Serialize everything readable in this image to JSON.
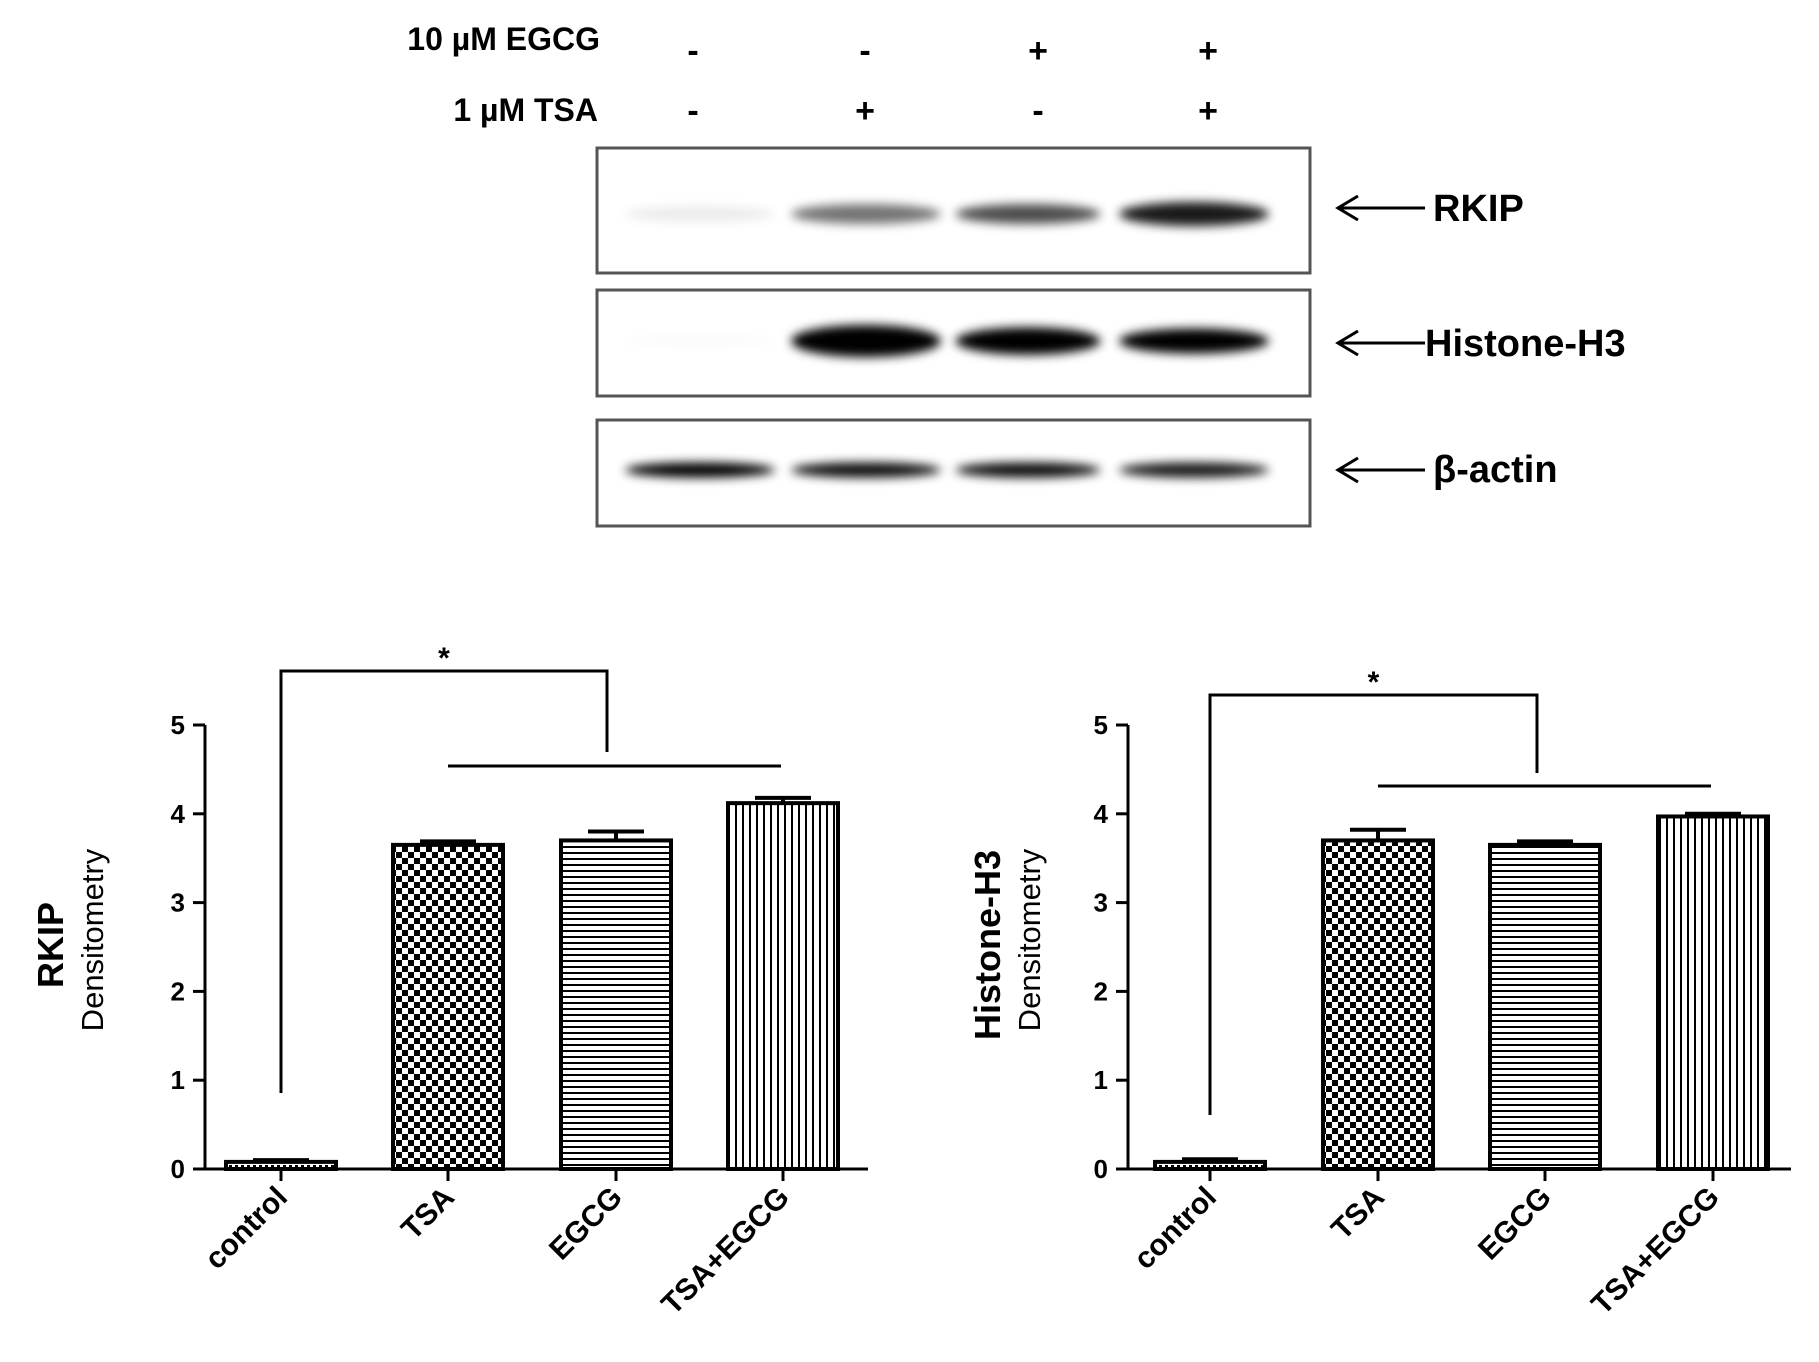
{
  "blot": {
    "treatments": [
      {
        "label": "10 µM EGCG",
        "signs": [
          "-",
          "-",
          "+",
          "+"
        ]
      },
      {
        "label": "1 µM TSA",
        "signs": [
          "-",
          "+",
          "-",
          "+"
        ]
      }
    ],
    "bands": [
      {
        "label": "RKIP",
        "intensity": [
          0.08,
          0.55,
          0.7,
          0.9
        ],
        "thickness": [
          0.35,
          0.45,
          0.45,
          0.55
        ]
      },
      {
        "label": "Histone-H3",
        "intensity": [
          0.02,
          1.0,
          1.0,
          1.0
        ],
        "thickness": [
          0.2,
          0.7,
          0.6,
          0.55
        ]
      },
      {
        "label": "β-actin",
        "intensity": [
          1.0,
          0.95,
          0.95,
          0.9
        ],
        "thickness": [
          0.45,
          0.45,
          0.45,
          0.45
        ]
      }
    ],
    "band_color": "#000000"
  },
  "chart_data": [
    {
      "type": "bar",
      "categories": [
        "control",
        "TSA",
        "EGCG",
        "TSA+EGCG"
      ],
      "values": [
        0.08,
        3.65,
        3.7,
        4.12
      ],
      "errors": [
        0.02,
        0.04,
        0.1,
        0.06
      ],
      "patterns": [
        "dots",
        "checker",
        "horizontal",
        "vertical"
      ],
      "ylabel_main": "RKIP",
      "ylabel_sub": "Densitometry",
      "ylim": [
        0,
        5
      ],
      "yticks": [
        "0",
        "1",
        "2",
        "3",
        "4",
        "5"
      ],
      "significance": "*"
    },
    {
      "type": "bar",
      "categories": [
        "control",
        "TSA",
        "EGCG",
        "TSA+EGCG"
      ],
      "values": [
        0.08,
        3.7,
        3.65,
        3.97
      ],
      "errors": [
        0.03,
        0.12,
        0.04,
        0.03
      ],
      "patterns": [
        "dots",
        "checker",
        "horizontal",
        "vertical"
      ],
      "ylabel_main": "Histone-H3",
      "ylabel_sub": "Densitometry",
      "ylim": [
        0,
        5
      ],
      "yticks": [
        "0",
        "1",
        "2",
        "3",
        "4",
        "5"
      ],
      "significance": "*"
    }
  ]
}
